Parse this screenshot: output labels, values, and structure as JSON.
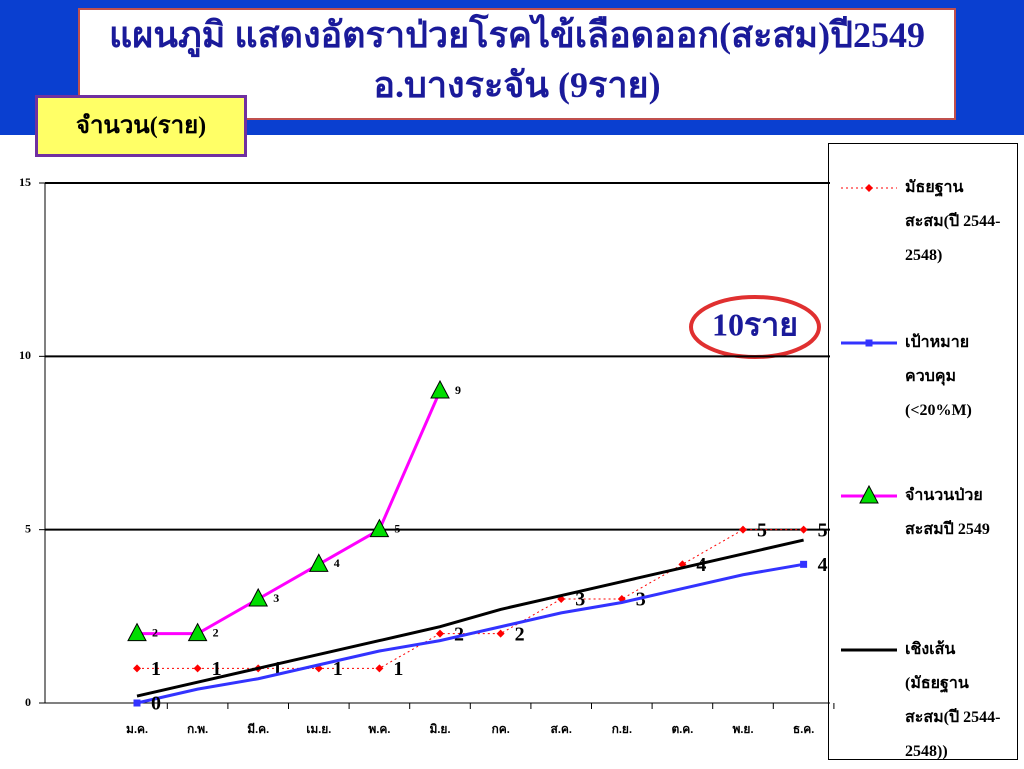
{
  "chart_data": {
    "type": "line",
    "title": [
      "แผนภูมิ  แสดงอัตราป่วยโรคไข้เลือดออก(สะสม)ปี2549",
      "อ.บางระจัน (9ราย)"
    ],
    "y_axis_label": "จำนวน(ราย)",
    "annotation": "10ราย",
    "categories": [
      "ม.ค.",
      "ก.พ.",
      "มี.ค.",
      "เม.ย.",
      "พ.ค.",
      "มิ.ย.",
      "กค.",
      "ส.ค.",
      "ก.ย.",
      "ต.ค.",
      "พ.ย.",
      "ธ.ค."
    ],
    "series": [
      {
        "name": "มัธยฐานสะสม(ปี 2544-2548)",
        "color": "#ff0000",
        "dashed": true,
        "marker": "diamond",
        "data_labels": "large",
        "values": [
          1,
          1,
          1,
          1,
          1,
          2,
          2,
          3,
          3,
          4,
          5,
          5
        ]
      },
      {
        "name": "เป้าหมายควบคุม (<20%M)",
        "color": "#3333ff",
        "marker": "square",
        "marker_at": "ends",
        "data_labels": "large",
        "labels_at": "ends",
        "values": [
          0,
          0.4,
          0.7,
          1.1,
          1.5,
          1.8,
          2.2,
          2.6,
          2.9,
          3.3,
          3.7,
          4
        ]
      },
      {
        "name": "จำนวนป่วยสะสมปี 2549",
        "color": "#ff00ff",
        "marker": "triangle",
        "data_labels": "small",
        "values": [
          2,
          2,
          3,
          4,
          5,
          9,
          null,
          null,
          null,
          null,
          null,
          null
        ]
      },
      {
        "name": "เชิงเส้น (มัธยฐานสะสม(ปี 2544-2548))",
        "color": "#000000",
        "values": [
          0.2,
          0.6,
          1.0,
          1.4,
          1.8,
          2.2,
          2.7,
          3.1,
          3.5,
          3.9,
          4.3,
          4.7
        ]
      }
    ],
    "ylim": [
      0,
      15
    ],
    "yticks": [
      0,
      5,
      10,
      15
    ],
    "grid": true
  }
}
